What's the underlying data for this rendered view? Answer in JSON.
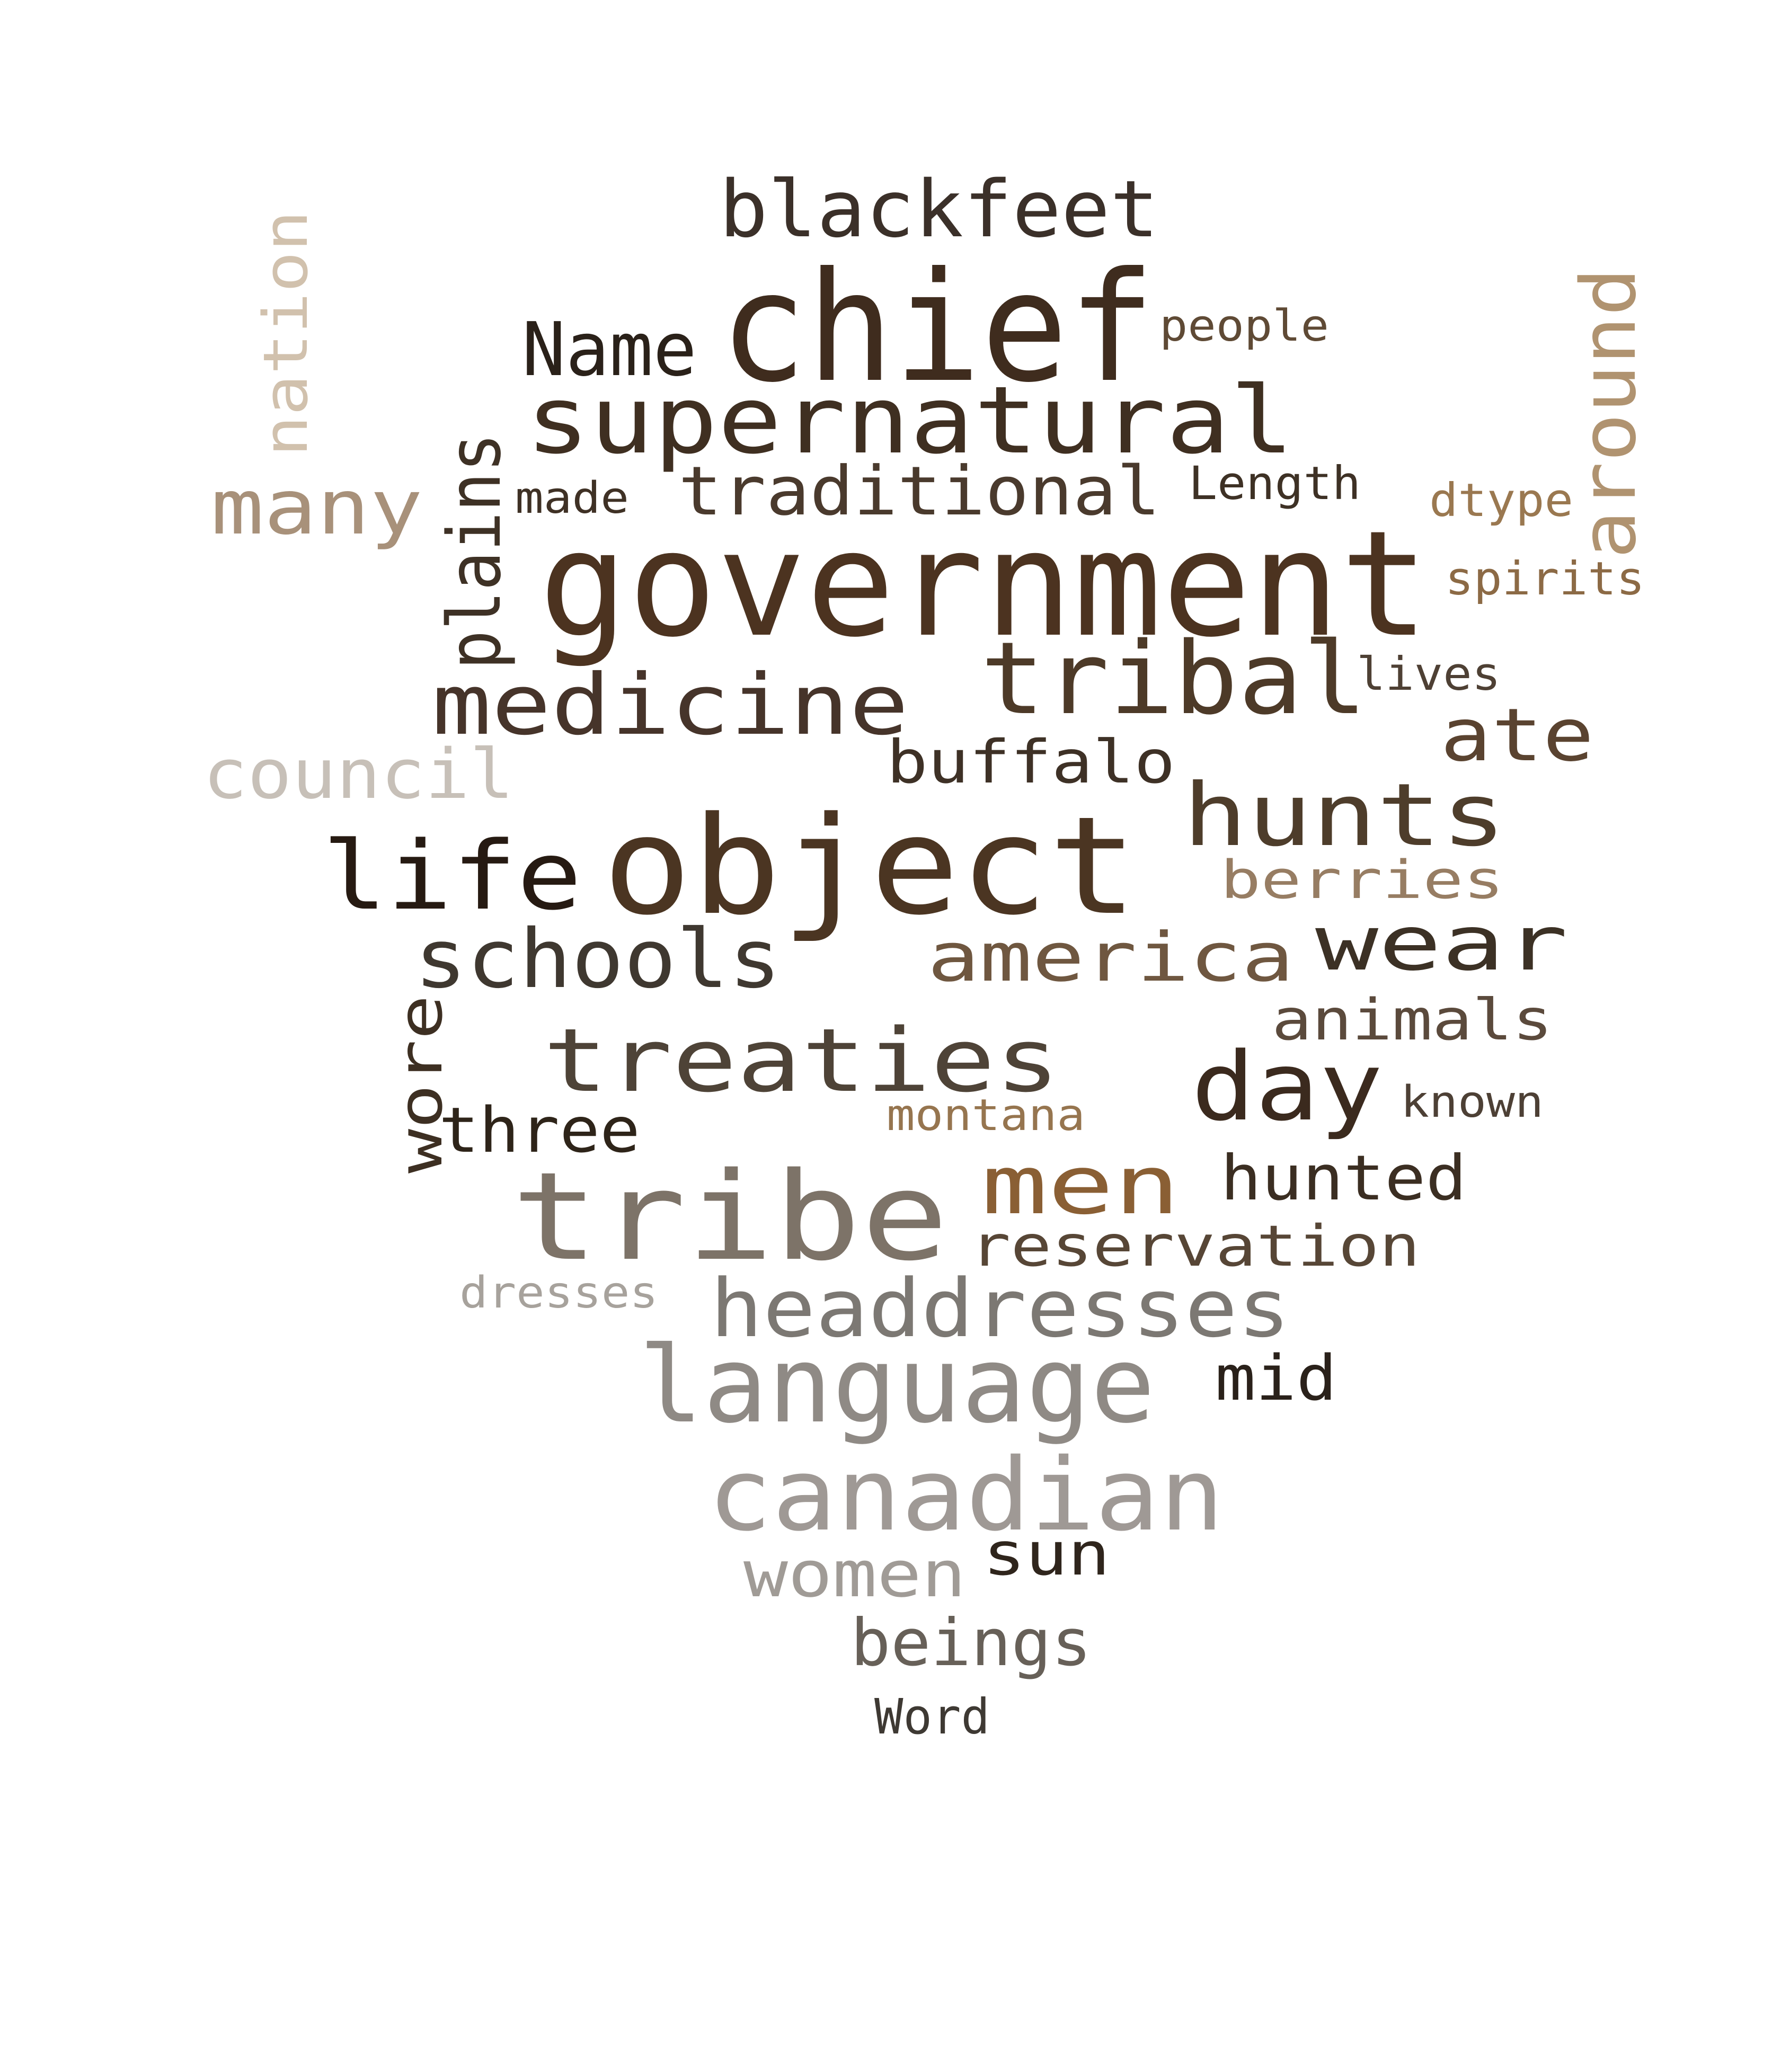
{
  "words": [
    {
      "text": "chief",
      "color": "#3f2c1e"
    },
    {
      "text": "government",
      "color": "#4c3320"
    },
    {
      "text": "object",
      "color": "#4b3522"
    },
    {
      "text": "tribe",
      "color": "#7d7368"
    },
    {
      "text": "supernatural",
      "color": "#3f2f21"
    },
    {
      "text": "tribal",
      "color": "#4d3a28"
    },
    {
      "text": "medicine",
      "color": "#46342a"
    },
    {
      "text": "life",
      "color": "#261a12"
    },
    {
      "text": "hunts",
      "color": "#4e3d2b"
    },
    {
      "text": "treaties",
      "color": "#4e4337"
    },
    {
      "text": "day",
      "color": "#3b2a1e"
    },
    {
      "text": "language",
      "color": "#8f8a85"
    },
    {
      "text": "canadian",
      "color": "#9f9995"
    },
    {
      "text": "headdresses",
      "color": "#7c7873"
    },
    {
      "text": "men",
      "color": "#8a5f34"
    },
    {
      "text": "schools",
      "color": "#3f3830"
    },
    {
      "text": "america",
      "color": "#6f5740"
    },
    {
      "text": "wear",
      "color": "#3c3125"
    },
    {
      "text": "blackfeet",
      "color": "#3b3029"
    },
    {
      "text": "Name",
      "color": "#2a2119"
    },
    {
      "text": "traditional",
      "color": "#4a3a2d"
    },
    {
      "text": "many",
      "color": "#a8917a"
    },
    {
      "text": "council",
      "color": "#c7c0b8"
    },
    {
      "text": "buffalo",
      "color": "#3e3126"
    },
    {
      "text": "ate",
      "color": "#5a4330"
    },
    {
      "text": "berries",
      "color": "#977d63"
    },
    {
      "text": "animals",
      "color": "#5b4a3c"
    },
    {
      "text": "three",
      "color": "#2e2419"
    },
    {
      "text": "hunted",
      "color": "#3b2e22"
    },
    {
      "text": "reservation",
      "color": "#574636"
    },
    {
      "text": "mid",
      "color": "#2a211a"
    },
    {
      "text": "sun",
      "color": "#2f251c"
    },
    {
      "text": "women",
      "color": "#a09b96"
    },
    {
      "text": "beings",
      "color": "#676058"
    },
    {
      "text": "Word",
      "color": "#3e3933"
    },
    {
      "text": "dresses",
      "color": "#a7a29c"
    },
    {
      "text": "montana",
      "color": "#96754f"
    },
    {
      "text": "known",
      "color": "#4d4035"
    },
    {
      "text": "people",
      "color": "#5f4a35"
    },
    {
      "text": "Length",
      "color": "#3e3125"
    },
    {
      "text": "dtype",
      "color": "#9a7850"
    },
    {
      "text": "spirits",
      "color": "#8c6a45"
    },
    {
      "text": "lives",
      "color": "#4e4034"
    },
    {
      "text": "made",
      "color": "#3f3125"
    },
    {
      "text": "plains",
      "color": "#3e3125"
    },
    {
      "text": "nation",
      "color": "#d1c1ad"
    },
    {
      "text": "around",
      "color": "#b09370"
    },
    {
      "text": "wore",
      "color": "#3d2f22"
    }
  ]
}
